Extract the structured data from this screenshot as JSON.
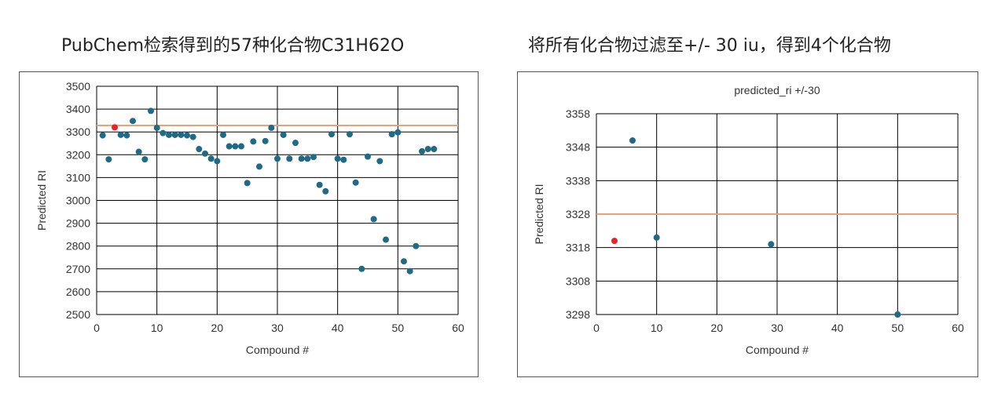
{
  "headings": {
    "left": "PubChem检索得到的57种化合物C31H62O",
    "right": "将所有化合物过滤至+/- 30 iu，得到4个化合物"
  },
  "colors": {
    "points": "#1f6a86",
    "highlight": "#e8222a",
    "reference_line": "#f0a070",
    "grid": "#000000"
  },
  "chart_data": [
    {
      "type": "scatter",
      "title": "",
      "xlabel": "Compound #",
      "ylabel": "Predicted RI",
      "xlim": [
        0,
        60
      ],
      "ylim": [
        2500,
        3500
      ],
      "xticks": [
        0,
        10,
        20,
        30,
        40,
        50,
        60
      ],
      "yticks": [
        2500,
        2600,
        2700,
        2800,
        2900,
        3000,
        3100,
        3200,
        3300,
        3400,
        3500
      ],
      "reference_line": 3328,
      "highlight_point": {
        "x": 3,
        "y": 3320
      },
      "points": [
        {
          "x": 1,
          "y": 3285
        },
        {
          "x": 2,
          "y": 3180
        },
        {
          "x": 4,
          "y": 3287
        },
        {
          "x": 5,
          "y": 3285
        },
        {
          "x": 6,
          "y": 3348
        },
        {
          "x": 7,
          "y": 3213
        },
        {
          "x": 8,
          "y": 3180
        },
        {
          "x": 9,
          "y": 3392
        },
        {
          "x": 10,
          "y": 3318
        },
        {
          "x": 11,
          "y": 3295
        },
        {
          "x": 12,
          "y": 3287
        },
        {
          "x": 13,
          "y": 3287
        },
        {
          "x": 14,
          "y": 3287
        },
        {
          "x": 15,
          "y": 3285
        },
        {
          "x": 16,
          "y": 3278
        },
        {
          "x": 17,
          "y": 3225
        },
        {
          "x": 18,
          "y": 3205
        },
        {
          "x": 19,
          "y": 3183
        },
        {
          "x": 20,
          "y": 3172
        },
        {
          "x": 21,
          "y": 3287
        },
        {
          "x": 22,
          "y": 3237
        },
        {
          "x": 23,
          "y": 3237
        },
        {
          "x": 24,
          "y": 3237
        },
        {
          "x": 25,
          "y": 3076
        },
        {
          "x": 26,
          "y": 3258
        },
        {
          "x": 27,
          "y": 3148
        },
        {
          "x": 28,
          "y": 3260
        },
        {
          "x": 29,
          "y": 3318
        },
        {
          "x": 30,
          "y": 3183
        },
        {
          "x": 31,
          "y": 3287
        },
        {
          "x": 32,
          "y": 3183
        },
        {
          "x": 33,
          "y": 3252
        },
        {
          "x": 34,
          "y": 3183
        },
        {
          "x": 35,
          "y": 3183
        },
        {
          "x": 36,
          "y": 3190
        },
        {
          "x": 37,
          "y": 3068
        },
        {
          "x": 38,
          "y": 3040
        },
        {
          "x": 39,
          "y": 3290
        },
        {
          "x": 40,
          "y": 3183
        },
        {
          "x": 41,
          "y": 3178
        },
        {
          "x": 42,
          "y": 3290
        },
        {
          "x": 43,
          "y": 3078
        },
        {
          "x": 44,
          "y": 2700
        },
        {
          "x": 45,
          "y": 3192
        },
        {
          "x": 46,
          "y": 2918
        },
        {
          "x": 47,
          "y": 3172
        },
        {
          "x": 48,
          "y": 2828
        },
        {
          "x": 49,
          "y": 3290
        },
        {
          "x": 50,
          "y": 3298
        },
        {
          "x": 51,
          "y": 2733
        },
        {
          "x": 52,
          "y": 2690
        },
        {
          "x": 53,
          "y": 2800
        },
        {
          "x": 54,
          "y": 3215
        },
        {
          "x": 55,
          "y": 3225
        },
        {
          "x": 56,
          "y": 3225
        }
      ]
    },
    {
      "type": "scatter",
      "title": "predicted_ri +/-30",
      "xlabel": "Compound #",
      "ylabel": "Predicted RI",
      "xlim": [
        0,
        60
      ],
      "ylim": [
        3298,
        3358
      ],
      "xticks": [
        0,
        10,
        20,
        30,
        40,
        50,
        60
      ],
      "yticks": [
        3298,
        3308,
        3318,
        3328,
        3338,
        3348,
        3358
      ],
      "reference_line": 3328,
      "highlight_point": {
        "x": 3,
        "y": 3320
      },
      "points": [
        {
          "x": 6,
          "y": 3350
        },
        {
          "x": 10,
          "y": 3321
        },
        {
          "x": 29,
          "y": 3319
        },
        {
          "x": 50,
          "y": 3298
        }
      ]
    }
  ]
}
